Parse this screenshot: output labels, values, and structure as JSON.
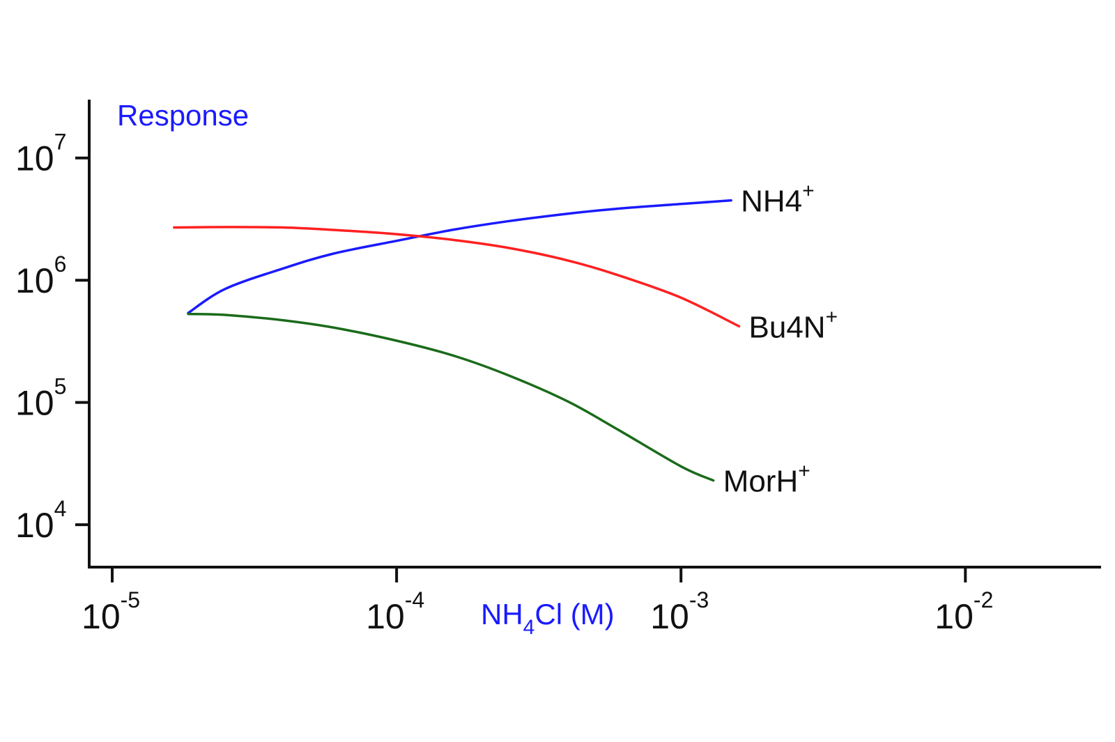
{
  "chart_data": {
    "type": "line",
    "title": "",
    "ylabel": "Response",
    "xlabel": {
      "pre": "NH",
      "sub": "4",
      "post": "Cl (M)"
    },
    "x_scale": "log",
    "y_scale": "log",
    "xlim": [
      8.3e-06,
      0.03
    ],
    "ylim": [
      4500,
      30000000
    ],
    "x_ticks": [
      {
        "value": 1e-05,
        "base": "10",
        "exp": "-5"
      },
      {
        "value": 0.0001,
        "base": "10",
        "exp": "-4"
      },
      {
        "value": 0.001,
        "base": "10",
        "exp": "-3"
      },
      {
        "value": 0.01,
        "base": "10",
        "exp": "-2"
      }
    ],
    "y_ticks": [
      {
        "value": 10000,
        "base": "10",
        "exp": "4"
      },
      {
        "value": 100000,
        "base": "10",
        "exp": "5"
      },
      {
        "value": 1000000,
        "base": "10",
        "exp": "6"
      },
      {
        "value": 10000000,
        "base": "10",
        "exp": "7"
      }
    ],
    "grid": false,
    "legend": "none",
    "colors": {
      "axis": "#111111",
      "ylabel": "#1a1aff",
      "xlabel": "#1a1aff"
    },
    "series": [
      {
        "name": {
          "main": "NH4",
          "sup": "+"
        },
        "color": "#1a1aff",
        "x": [
          1.85e-05,
          2.5e-05,
          4e-05,
          6e-05,
          0.0001,
          0.00016,
          0.00025,
          0.0004,
          0.0006,
          0.001,
          0.0015
        ],
        "y": [
          540000,
          850000,
          1250000,
          1650000,
          2100000,
          2600000,
          3050000,
          3500000,
          3850000,
          4200000,
          4500000
        ]
      },
      {
        "name": {
          "main": "Bu4N",
          "sup": "+"
        },
        "color": "#ff2020",
        "x": [
          1.65e-05,
          2.5e-05,
          4e-05,
          6e-05,
          0.0001,
          0.00016,
          0.00025,
          0.0004,
          0.0006,
          0.001,
          0.0016
        ],
        "y": [
          2700000,
          2720000,
          2700000,
          2580000,
          2380000,
          2130000,
          1830000,
          1450000,
          1100000,
          720000,
          420000
        ]
      },
      {
        "name": {
          "main": "MorH",
          "sup": "+"
        },
        "color": "#1a6b1a",
        "x": [
          1.85e-05,
          2.5e-05,
          4e-05,
          6e-05,
          0.0001,
          0.00016,
          0.00025,
          0.0004,
          0.0006,
          0.001,
          0.0013
        ],
        "y": [
          530000,
          520000,
          470000,
          410000,
          320000,
          240000,
          165000,
          102000,
          60000,
          30000,
          23000
        ]
      }
    ]
  }
}
